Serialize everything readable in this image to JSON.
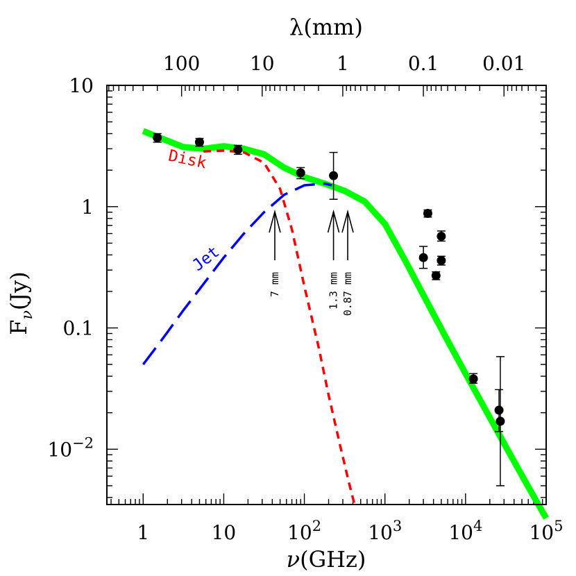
{
  "chart_data": {
    "type": "line",
    "x_scale": "log",
    "y_scale": "log",
    "xlim": [
      0.3548,
      100000
    ],
    "ylim": [
      0.0035,
      10
    ],
    "xlabel_sym": "ν",
    "xlabel_unit": "(GHz)",
    "ylabel_main": "F",
    "ylabel_sub": "ν",
    "ylabel_unit": "(Jy)",
    "top_axis_label": "λ(mm)",
    "x_ticks": [
      {
        "v": 1,
        "label": "1"
      },
      {
        "v": 10,
        "label": "10"
      },
      {
        "v": 100,
        "base": "10",
        "exp": "2"
      },
      {
        "v": 1000,
        "base": "10",
        "exp": "3"
      },
      {
        "v": 10000,
        "base": "10",
        "exp": "4"
      },
      {
        "v": 100000,
        "base": "10",
        "exp": "5"
      }
    ],
    "y_ticks": [
      {
        "v": 10,
        "label": "10"
      },
      {
        "v": 1,
        "label": "1"
      },
      {
        "v": 0.1,
        "label": "0.1"
      },
      {
        "v": 0.01,
        "base": "10",
        "exp": "−2"
      }
    ],
    "top_ticks": [
      {
        "mm": 100,
        "label": "100"
      },
      {
        "mm": 10,
        "label": "10"
      },
      {
        "mm": 1,
        "label": "1"
      },
      {
        "mm": 0.1,
        "label": "0.1"
      },
      {
        "mm": 0.01,
        "label": "0.01"
      }
    ],
    "series": [
      {
        "label": "",
        "color": "#00ff00",
        "style": "solid-thick",
        "x": [
          1,
          1.78,
          3.16,
          5.6,
          10,
          17.8,
          31.6,
          56,
          100,
          178,
          316,
          562,
          1000,
          1780,
          3160,
          5620,
          10000,
          17800,
          31600,
          56200,
          100000
        ],
        "y": [
          4.2,
          3.6,
          3.1,
          3.0,
          3.15,
          3.0,
          2.7,
          2.1,
          1.75,
          1.55,
          1.35,
          1.1,
          0.72,
          0.36,
          0.175,
          0.085,
          0.042,
          0.021,
          0.0105,
          0.0053,
          0.0027
        ]
      },
      {
        "label": "Disk",
        "color": "#ff0000",
        "style": "dashed-short",
        "x": [
          5.6,
          10,
          17.8,
          31.6,
          50,
          70,
          100,
          150,
          200,
          280,
          360,
          420
        ],
        "y": [
          2.85,
          2.9,
          2.8,
          2.3,
          1.4,
          0.65,
          0.22,
          0.07,
          0.028,
          0.0105,
          0.0052,
          0.0035
        ]
      },
      {
        "label": "Jet",
        "color": "#0000ff",
        "style": "dashed-long",
        "x": [
          1,
          1.78,
          3.16,
          5.6,
          10,
          17.8,
          31.6,
          56,
          100,
          178,
          220
        ],
        "y": [
          0.05,
          0.083,
          0.14,
          0.23,
          0.38,
          0.6,
          0.9,
          1.25,
          1.5,
          1.55,
          1.5
        ]
      }
    ],
    "points": [
      {
        "x": 1.5,
        "y": 3.7,
        "lo": 3.4,
        "hi": 4.0
      },
      {
        "x": 5,
        "y": 3.4,
        "lo": 3.15,
        "hi": 3.65
      },
      {
        "x": 15,
        "y": 2.95,
        "lo": 2.7,
        "hi": 3.2
      },
      {
        "x": 90,
        "y": 1.9,
        "lo": 1.7,
        "hi": 2.1
      },
      {
        "x": 230,
        "y": 1.8,
        "lo": 1.15,
        "hi": 2.8
      },
      {
        "x": 3000,
        "y": 0.38,
        "lo": 0.31,
        "hi": 0.47
      },
      {
        "x": 3400,
        "y": 0.88,
        "lo": 0.82,
        "hi": 0.94
      },
      {
        "x": 4300,
        "y": 0.27,
        "lo": 0.25,
        "hi": 0.29
      },
      {
        "x": 5000,
        "y": 0.57,
        "lo": 0.52,
        "hi": 0.63
      },
      {
        "x": 5000,
        "y": 0.36,
        "lo": 0.33,
        "hi": 0.39
      },
      {
        "x": 12500,
        "y": 0.038,
        "lo": 0.035,
        "hi": 0.042
      },
      {
        "x": 26000,
        "y": 0.021,
        "lo": 0.014,
        "hi": 0.031
      },
      {
        "x": 27000,
        "y": 0.017,
        "lo": 0.005,
        "hi": 0.058
      }
    ],
    "annotations": [
      {
        "x": 43,
        "label": "7 mm"
      },
      {
        "x": 230,
        "label": "1.3 mm"
      },
      {
        "x": 345,
        "label": "0.87 mm"
      }
    ],
    "series_labels": [
      {
        "text": "Disk",
        "color": "#ff0000"
      },
      {
        "text": "Jet",
        "color": "#0000ff"
      }
    ]
  }
}
